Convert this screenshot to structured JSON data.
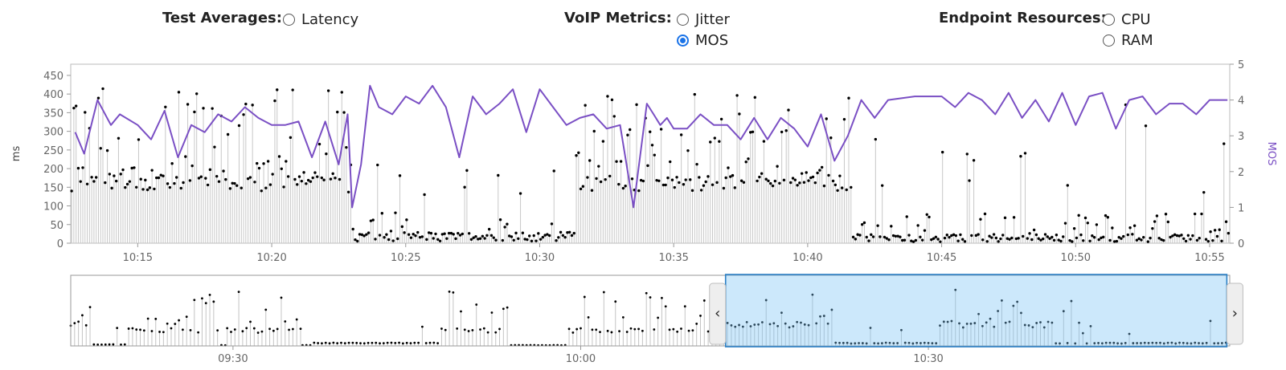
{
  "controls": {
    "groups": [
      {
        "label": "Test Averages:",
        "options": [
          {
            "label": "Latency",
            "selected": false
          }
        ]
      },
      {
        "label": "VoIP Metrics:",
        "options": [
          {
            "label": "Jitter",
            "selected": false
          },
          {
            "label": "MOS",
            "selected": true
          }
        ]
      },
      {
        "label": "Endpoint Resources:",
        "options": [
          {
            "label": "CPU",
            "selected": false
          },
          {
            "label": "RAM",
            "selected": false
          }
        ]
      }
    ]
  },
  "chart_data": [
    {
      "type": "bar",
      "name": "main",
      "x_range": [
        "10:12:30",
        "10:55:45"
      ],
      "x_ticks": [
        "10:15",
        "10:20",
        "10:25",
        "10:30",
        "10:35",
        "10:40",
        "10:45",
        "10:50",
        "10:55"
      ],
      "y_left": {
        "label": "ms",
        "range": [
          0,
          480
        ],
        "ticks": [
          0,
          50,
          100,
          150,
          200,
          250,
          300,
          350,
          400,
          450
        ]
      },
      "y_right": {
        "label": "MOS",
        "range": [
          0,
          5
        ],
        "ticks": [
          0,
          1,
          2,
          3,
          4,
          5
        ]
      },
      "grid": false,
      "series": [
        {
          "type": "stem",
          "color": "#000000",
          "stem_color": "#c8c8c8",
          "segments": [
            {
              "from": "10:12:30",
              "to": "10:22:50",
              "base": 160,
              "spike_max": 430,
              "density": "dense"
            },
            {
              "from": "10:22:50",
              "to": "10:31:20",
              "base": 25,
              "spike_max": 250,
              "density": "sparse"
            },
            {
              "from": "10:31:20",
              "to": "10:41:40",
              "base": 160,
              "spike_max": 410,
              "density": "dense"
            },
            {
              "from": "10:41:40",
              "to": "10:55:45",
              "base": 20,
              "spike_max": 380,
              "density": "sparse"
            }
          ]
        },
        {
          "type": "line",
          "axis": "right",
          "color": "#7a4fc4",
          "x": [
            "10:12:40",
            "10:13:00",
            "10:13:30",
            "10:14:00",
            "10:14:20",
            "10:15:00",
            "10:15:30",
            "10:16:00",
            "10:16:30",
            "10:17:00",
            "10:17:30",
            "10:18:00",
            "10:18:30",
            "10:19:00",
            "10:19:30",
            "10:20:00",
            "10:20:30",
            "10:21:00",
            "10:21:30",
            "10:22:00",
            "10:22:30",
            "10:22:50",
            "10:23:00",
            "10:23:20",
            "10:23:40",
            "10:24:00",
            "10:24:30",
            "10:25:00",
            "10:25:30",
            "10:26:00",
            "10:26:30",
            "10:27:00",
            "10:27:30",
            "10:28:00",
            "10:28:30",
            "10:29:00",
            "10:29:30",
            "10:30:00",
            "10:30:30",
            "10:31:00",
            "10:31:30",
            "10:32:00",
            "10:32:30",
            "10:33:00",
            "10:33:30",
            "10:34:00",
            "10:34:15",
            "10:34:30",
            "10:34:45",
            "10:35:00",
            "10:35:30",
            "10:36:00",
            "10:36:30",
            "10:37:00",
            "10:37:30",
            "10:38:00",
            "10:38:30",
            "10:39:00",
            "10:39:30",
            "10:40:00",
            "10:40:30",
            "10:41:00",
            "10:41:30",
            "10:42:00",
            "10:42:30",
            "10:43:00",
            "10:44:00",
            "10:45:00",
            "10:45:30",
            "10:46:00",
            "10:46:30",
            "10:47:00",
            "10:47:30",
            "10:48:00",
            "10:48:30",
            "10:49:00",
            "10:49:30",
            "10:50:00",
            "10:50:30",
            "10:51:00",
            "10:51:30",
            "10:52:00",
            "10:52:30",
            "10:53:00",
            "10:53:30",
            "10:54:00",
            "10:54:30",
            "10:55:00",
            "10:55:40"
          ],
          "values": [
            3.1,
            2.5,
            4.0,
            3.3,
            3.6,
            3.3,
            2.9,
            3.7,
            2.4,
            3.3,
            3.1,
            3.6,
            3.4,
            3.8,
            3.5,
            3.3,
            3.3,
            3.4,
            2.4,
            3.4,
            2.2,
            3.6,
            1.0,
            2.2,
            4.4,
            3.8,
            3.6,
            4.1,
            3.9,
            4.4,
            3.8,
            2.4,
            4.1,
            3.6,
            3.9,
            4.3,
            3.1,
            4.3,
            3.8,
            3.3,
            3.5,
            3.6,
            3.2,
            3.3,
            1.0,
            3.9,
            3.6,
            3.3,
            3.5,
            3.2,
            3.2,
            3.6,
            3.3,
            3.3,
            2.9,
            3.5,
            2.9,
            3.5,
            3.2,
            2.7,
            3.6,
            2.3,
            3.0,
            4.0,
            3.5,
            4.0,
            4.1,
            4.1,
            3.8,
            4.2,
            4.0,
            3.6,
            4.2,
            3.5,
            4.0,
            3.4,
            4.2,
            3.3,
            4.1,
            4.2,
            3.2,
            4.0,
            4.1,
            3.6,
            3.9,
            3.9,
            3.6,
            4.0,
            4.0
          ]
        }
      ]
    },
    {
      "type": "bar",
      "name": "overview",
      "x_range": [
        "09:16",
        "10:56"
      ],
      "x_ticks": [
        "09:30",
        "10:00",
        "10:30"
      ],
      "y_range": [
        0,
        500
      ],
      "selection": {
        "from": "10:12:30",
        "to": "10:55:45"
      },
      "handle_left_icon": "chevron-left-icon",
      "handle_right_icon": "chevron-right-icon"
    }
  ]
}
